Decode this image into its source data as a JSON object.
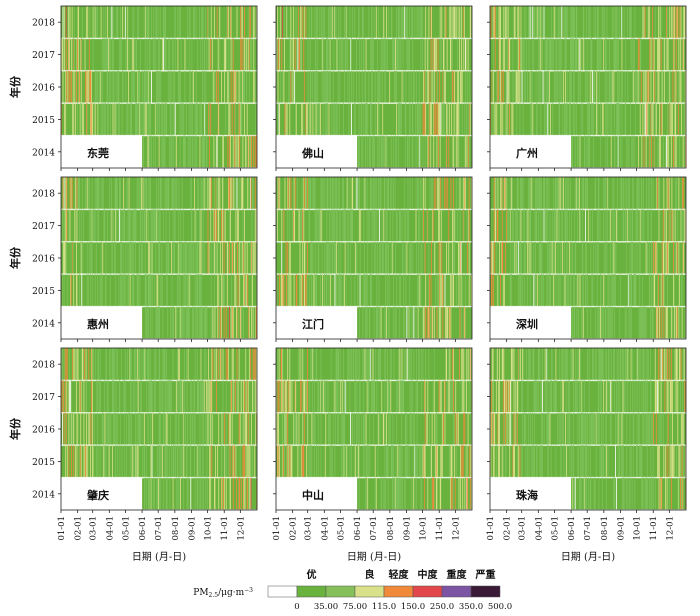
{
  "chart_data": {
    "type": "heatmap",
    "layout": "3x3 small multiples",
    "ylabel": "年份",
    "xlabel": "日期 (月-日)",
    "years": [
      "2018",
      "2017",
      "2016",
      "2015",
      "2014"
    ],
    "x_ticks": [
      "01-01",
      "02-01",
      "03-01",
      "04-01",
      "05-01",
      "06-01",
      "07-01",
      "08-01",
      "09-01",
      "10-01",
      "11-01",
      "12-01"
    ],
    "panels": [
      {
        "city": "东莞",
        "missing_2014_until": "05-31",
        "polluted_months": [
          "01",
          "02",
          "10",
          "11",
          "12"
        ],
        "rare_high": [
          "2018-01-10"
        ]
      },
      {
        "city": "佛山",
        "missing_2014_until": "05-31",
        "polluted_months": [
          "01",
          "02",
          "10",
          "11",
          "12"
        ],
        "rare_high": [
          "2018-01-12",
          "2017-01-05"
        ]
      },
      {
        "city": "广州",
        "missing_2014_until": "05-31",
        "polluted_months": [
          "01",
          "02",
          "10",
          "11",
          "12"
        ],
        "rare_high": [
          "2018-01-10"
        ]
      },
      {
        "city": "惠州",
        "missing_2014_until": "05-31",
        "polluted_months": [
          "01",
          "10",
          "11",
          "12"
        ],
        "rare_high": [
          "2014-11-10"
        ]
      },
      {
        "city": "江门",
        "missing_2014_until": "05-31",
        "polluted_months": [
          "01",
          "02",
          "10",
          "11",
          "12"
        ],
        "rare_high": []
      },
      {
        "city": "深圳",
        "missing_2014_until": "05-31",
        "polluted_months": [
          "01",
          "11",
          "12"
        ],
        "rare_high": [
          "2014-11-20"
        ]
      },
      {
        "city": "肇庆",
        "missing_2014_until": "05-31",
        "polluted_months": [
          "01",
          "02",
          "10",
          "11",
          "12"
        ],
        "rare_high": [
          "2018-01-08",
          "2014-12-20"
        ]
      },
      {
        "city": "中山",
        "missing_2014_until": "05-31",
        "polluted_months": [
          "01",
          "02",
          "10",
          "11",
          "12"
        ],
        "rare_high": [
          "2018-01-10"
        ]
      },
      {
        "city": "珠海",
        "missing_2014_until": "05-31",
        "polluted_months": [
          "01",
          "02",
          "11",
          "12"
        ],
        "rare_high": []
      }
    ],
    "legend": {
      "title_parts": [
        "PM",
        "2.5",
        "/μg·m",
        "−3"
      ],
      "categories": [
        "优",
        "良",
        "轻度",
        "中度",
        "重度",
        "严重"
      ],
      "breaks": [
        "0",
        "35.00",
        "75.00",
        "115.0",
        "150.0",
        "250.0",
        "350.0",
        "500.0"
      ],
      "colors": [
        "#ffffff",
        "#6ab23e",
        "#86c05a",
        "#d9e08a",
        "#f08a3a",
        "#e2474c",
        "#7c54a4",
        "#3a1a36"
      ]
    },
    "colors": {
      "missing": "#ffffff",
      "excellent": "#6ab23e",
      "excellent_alt": "#7ec25b",
      "good": "#d9e08a",
      "light": "#f08a3a",
      "moderate": "#e2474c",
      "heavy": "#7c54a4",
      "severe": "#3a1a36"
    }
  }
}
